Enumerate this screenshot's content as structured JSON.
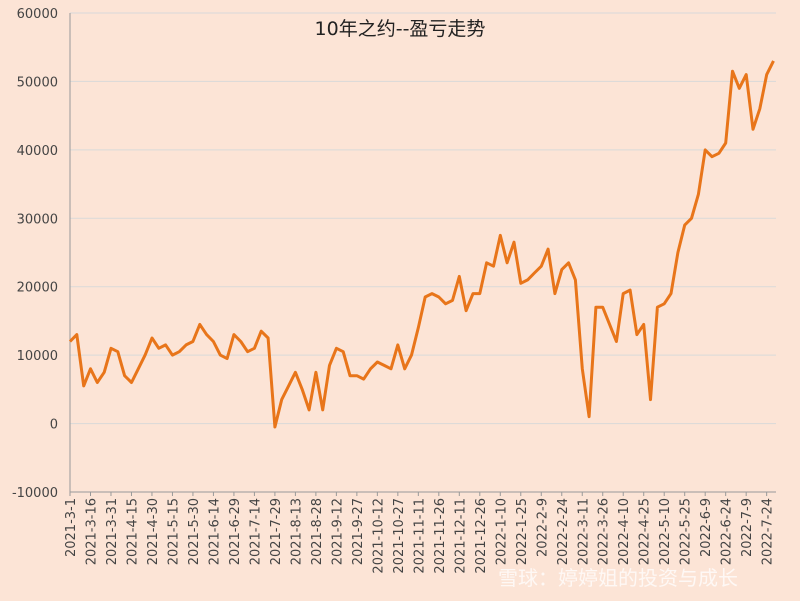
{
  "chart_data": {
    "type": "line",
    "title": "10年之约--盈亏走势",
    "annotations": [
      "雪球：婷婷姐的投资与成长"
    ],
    "categories": [
      "2021-3-1",
      null,
      null,
      "2021-3-16",
      null,
      null,
      "2021-3-31",
      null,
      null,
      "2021-4-15",
      null,
      null,
      "2021-4-30",
      null,
      null,
      "2021-5-15",
      null,
      null,
      "2021-5-30",
      null,
      null,
      "2021-6-14",
      null,
      null,
      "2021-6-29",
      null,
      null,
      "2021-7-14",
      null,
      null,
      "2021-7-29",
      null,
      null,
      "2021-8-13",
      null,
      null,
      "2021-8-28",
      null,
      null,
      "2021-9-12",
      null,
      null,
      "2021-9-27",
      null,
      null,
      "2021-10-12",
      null,
      null,
      "2021-10-27",
      null,
      null,
      "2021-11-11",
      null,
      null,
      "2021-11-26",
      null,
      null,
      "2021-12-11",
      null,
      null,
      "2021-12-26",
      null,
      null,
      "2022-1-10",
      null,
      null,
      "2022-1-25",
      null,
      null,
      "2022-2-9",
      null,
      null,
      "2022-2-24",
      null,
      null,
      "2022-3-11",
      null,
      null,
      "2022-3-26",
      null,
      null,
      "2022-4-10",
      null,
      null,
      "2022-4-25",
      null,
      null,
      "2022-5-10",
      null,
      null,
      "2022-5-25",
      null,
      null,
      "2022-6-9",
      null,
      null,
      "2022-6-24",
      null,
      null,
      "2022-7-9",
      null,
      null,
      "2022-7-24",
      null
    ],
    "series": [
      {
        "name": "盈亏",
        "color": "#e8751a",
        "values": [
          12000,
          13000,
          5500,
          8000,
          6000,
          7500,
          11000,
          10500,
          7000,
          6000,
          8000,
          10000,
          12500,
          11000,
          11500,
          10000,
          10500,
          11500,
          12000,
          14500,
          13000,
          12000,
          10000,
          9500,
          13000,
          12000,
          10500,
          11000,
          13500,
          12500,
          -500,
          3500,
          5500,
          7500,
          5000,
          2000,
          7500,
          2000,
          8500,
          11000,
          10500,
          7000,
          7000,
          6500,
          8000,
          9000,
          8500,
          8000,
          11500,
          8000,
          10000,
          14000,
          18500,
          19000,
          18500,
          17500,
          18000,
          21500,
          16500,
          19000,
          19000,
          23500,
          23000,
          27500,
          23500,
          26500,
          20500,
          21000,
          22000,
          23000,
          25500,
          19000,
          22500,
          23500,
          21000,
          8000,
          1000,
          17000,
          17000,
          14500,
          12000,
          19000,
          19500,
          13000,
          14500,
          3500,
          17000,
          17500,
          19000,
          25000,
          29000,
          30000,
          33500,
          40000,
          39000,
          39500,
          41000,
          51500,
          49000,
          51000,
          43000,
          46000,
          51000,
          53000
        ]
      }
    ],
    "ylim": [
      -10000,
      60000
    ],
    "yticks": [
      -10000,
      0,
      10000,
      20000,
      30000,
      40000,
      50000,
      60000
    ],
    "grid": true
  }
}
